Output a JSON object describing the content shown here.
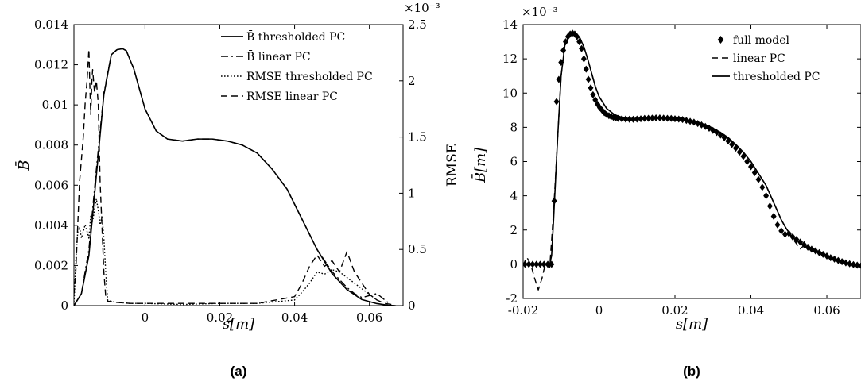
{
  "figure": {
    "caption_a": "(a)",
    "caption_b": "(b)"
  },
  "chart_data": [
    {
      "type": "line",
      "panel": "a",
      "xlabel": "s[m]",
      "ylabel": "B̄",
      "y2label": "RMSE",
      "y2_exponent": "×10⁻³",
      "xlim": [
        -0.019,
        0.069
      ],
      "ylim": [
        0,
        0.014
      ],
      "y2lim": [
        0,
        2.5
      ],
      "xticks": [
        "0",
        "0.02",
        "0.04",
        "0.06"
      ],
      "xtick_values": [
        0,
        0.02,
        0.04,
        0.06
      ],
      "yticks": [
        "0",
        "0.002",
        "0.004",
        "0.006",
        "0.008",
        "0.01",
        "0.012",
        "0.014"
      ],
      "ytick_values": [
        0,
        0.002,
        0.004,
        0.006,
        0.008,
        0.01,
        0.012,
        0.014
      ],
      "y2ticks": [
        "0",
        "0.5",
        "1",
        "1.5",
        "2",
        "2.5"
      ],
      "y2tick_values": [
        0,
        0.5,
        1,
        1.5,
        2,
        2.5
      ],
      "legend_position": "top-right",
      "series": [
        {
          "name": "B̄ thresholded PC",
          "axis": "left",
          "style": "solid",
          "x": [
            -0.019,
            -0.017,
            -0.015,
            -0.013,
            -0.011,
            -0.009,
            -0.0075,
            -0.006,
            -0.005,
            -0.003,
            0,
            0.003,
            0.006,
            0.01,
            0.014,
            0.018,
            0.022,
            0.026,
            0.03,
            0.034,
            0.038,
            0.042,
            0.046,
            0.05,
            0.054,
            0.058,
            0.062,
            0.065,
            0.067
          ],
          "y": [
            0,
            0.0006,
            0.0025,
            0.0065,
            0.0105,
            0.0125,
            0.01275,
            0.0128,
            0.0127,
            0.0118,
            0.0098,
            0.0087,
            0.0083,
            0.0082,
            0.0083,
            0.0083,
            0.0082,
            0.008,
            0.0076,
            0.0068,
            0.0058,
            0.0043,
            0.0028,
            0.0016,
            0.0008,
            0.0003,
            0.0001,
            2e-05,
            0
          ]
        },
        {
          "name": "B̄ linear PC",
          "axis": "left",
          "style": "dashdot",
          "x": [
            -0.019,
            -0.017,
            -0.015,
            -0.013,
            -0.011,
            -0.009,
            -0.0075,
            -0.006,
            -0.005,
            -0.003,
            0,
            0.003,
            0.006,
            0.01,
            0.014,
            0.018,
            0.022,
            0.026,
            0.03,
            0.034,
            0.038,
            0.042,
            0.046,
            0.05,
            0.054,
            0.056,
            0.058,
            0.06,
            0.062,
            0.064,
            0.066
          ],
          "y": [
            0,
            0.0006,
            0.0028,
            0.0068,
            0.0106,
            0.0125,
            0.01275,
            0.0128,
            0.0127,
            0.0118,
            0.0098,
            0.0087,
            0.0083,
            0.0082,
            0.0083,
            0.0083,
            0.0082,
            0.008,
            0.0076,
            0.0068,
            0.0058,
            0.0043,
            0.0028,
            0.0017,
            0.0009,
            0.0006,
            0.0004,
            0.0005,
            0.0006,
            0.0003,
            0
          ]
        },
        {
          "name": "RMSE thresholded PC",
          "axis": "right",
          "style": "dotted",
          "x": [
            -0.019,
            -0.0185,
            -0.018,
            -0.0175,
            -0.017,
            -0.016,
            -0.015,
            -0.0145,
            -0.014,
            -0.013,
            -0.0125,
            -0.012,
            -0.0115,
            -0.011,
            -0.0105,
            -0.01,
            -0.008,
            -0.004,
            0,
            0.01,
            0.02,
            0.03,
            0.04,
            0.042,
            0.044,
            0.046,
            0.048,
            0.05,
            0.052,
            0.054,
            0.056,
            0.058,
            0.06,
            0.062
          ],
          "y": [
            0,
            0.4,
            0.65,
            0.7,
            0.6,
            0.72,
            0.6,
            0.8,
            0.75,
            0.95,
            0.85,
            0.72,
            0.8,
            0.6,
            0.3,
            0.05,
            0.03,
            0.02,
            0.02,
            0.01,
            0.02,
            0.02,
            0.05,
            0.12,
            0.2,
            0.3,
            0.28,
            0.32,
            0.3,
            0.25,
            0.2,
            0.15,
            0.1,
            0.05
          ]
        },
        {
          "name": "RMSE linear PC",
          "axis": "right",
          "style": "dashed",
          "x": [
            -0.019,
            -0.0185,
            -0.018,
            -0.0175,
            -0.017,
            -0.0165,
            -0.016,
            -0.0155,
            -0.015,
            -0.0147,
            -0.0145,
            -0.0142,
            -0.014,
            -0.0135,
            -0.013,
            -0.0125,
            -0.012,
            -0.0115,
            -0.011,
            -0.0105,
            -0.01,
            -0.008,
            -0.004,
            0,
            0.01,
            0.02,
            0.03,
            0.04,
            0.042,
            0.044,
            0.046,
            0.048,
            0.05,
            0.052,
            0.054,
            0.056,
            0.058,
            0.06,
            0.062,
            0.064,
            0.066
          ],
          "y": [
            0.1,
            0.3,
            0.7,
            1.1,
            1.3,
            1.5,
            1.8,
            2.0,
            2.28,
            1.9,
            1.7,
            2.0,
            2.1,
            1.9,
            2.0,
            1.8,
            1.1,
            0.7,
            0.3,
            0.08,
            0.04,
            0.03,
            0.02,
            0.02,
            0.02,
            0.02,
            0.02,
            0.08,
            0.2,
            0.35,
            0.45,
            0.35,
            0.4,
            0.3,
            0.48,
            0.3,
            0.2,
            0.1,
            0.05,
            0.02,
            0.01
          ]
        }
      ]
    },
    {
      "type": "line",
      "panel": "b",
      "xlabel": "s[m]",
      "ylabel": "B̄[m]",
      "y_exponent": "×10⁻³",
      "xlim": [
        -0.02,
        0.069
      ],
      "ylim": [
        -2,
        14
      ],
      "xticks": [
        "-0.02",
        "0",
        "0.02",
        "0.04",
        "0.06"
      ],
      "xtick_values": [
        -0.02,
        0,
        0.02,
        0.04,
        0.06
      ],
      "yticks": [
        "-2",
        "0",
        "2",
        "4",
        "6",
        "8",
        "10",
        "12",
        "14"
      ],
      "ytick_values": [
        -2,
        0,
        2,
        4,
        6,
        8,
        10,
        12,
        14
      ],
      "legend_position": "top-right",
      "series": [
        {
          "name": "full model",
          "style": "diamond-markers",
          "x": [
            -0.0195,
            -0.0185,
            -0.0175,
            -0.0165,
            -0.0155,
            -0.0145,
            -0.0135,
            -0.0125,
            -0.0118,
            -0.0112,
            -0.0106,
            -0.01,
            -0.0094,
            -0.0088,
            -0.0082,
            -0.0076,
            -0.007,
            -0.0064,
            -0.0058,
            -0.0052,
            -0.0046,
            -0.004,
            -0.0034,
            -0.0028,
            -0.0022,
            -0.0016,
            -0.001,
            -0.0004,
            0.0002,
            0.0008,
            0.0014,
            0.002,
            0.0026,
            0.0032,
            0.0038,
            0.0044,
            0.005,
            0.006,
            0.007,
            0.008,
            0.009,
            0.01,
            0.011,
            0.012,
            0.013,
            0.014,
            0.015,
            0.016,
            0.017,
            0.018,
            0.019,
            0.02,
            0.021,
            0.022,
            0.023,
            0.024,
            0.025,
            0.026,
            0.027,
            0.028,
            0.029,
            0.03,
            0.031,
            0.032,
            0.033,
            0.034,
            0.035,
            0.036,
            0.037,
            0.038,
            0.039,
            0.04,
            0.041,
            0.042,
            0.043,
            0.044,
            0.045,
            0.046,
            0.047,
            0.048,
            0.049,
            0.05,
            0.051,
            0.052,
            0.053,
            0.054,
            0.055,
            0.056,
            0.057,
            0.058,
            0.059,
            0.06,
            0.061,
            0.062,
            0.063,
            0.064,
            0.065,
            0.066,
            0.067,
            0.068,
            0.069
          ],
          "y": [
            0,
            0,
            0,
            0,
            0,
            0,
            0,
            0,
            3.7,
            9.5,
            10.8,
            11.8,
            12.5,
            13.0,
            13.3,
            13.45,
            13.5,
            13.45,
            13.3,
            13.0,
            12.6,
            12.0,
            11.4,
            10.8,
            10.3,
            9.9,
            9.6,
            9.35,
            9.15,
            9.0,
            8.85,
            8.75,
            8.68,
            8.62,
            8.58,
            8.55,
            8.52,
            8.5,
            8.48,
            8.47,
            8.47,
            8.48,
            8.5,
            8.52,
            8.53,
            8.54,
            8.55,
            8.55,
            8.54,
            8.53,
            8.52,
            8.5,
            8.48,
            8.45,
            8.4,
            8.35,
            8.3,
            8.22,
            8.14,
            8.05,
            7.95,
            7.82,
            7.7,
            7.55,
            7.4,
            7.2,
            7.0,
            6.78,
            6.55,
            6.3,
            6.0,
            5.7,
            5.35,
            4.95,
            4.5,
            4.0,
            3.4,
            2.8,
            2.3,
            1.95,
            1.75,
            1.8,
            1.6,
            1.45,
            1.3,
            1.15,
            1.0,
            0.88,
            0.78,
            0.68,
            0.58,
            0.48,
            0.38,
            0.3,
            0.22,
            0.15,
            0.08,
            0.03,
            -0.02,
            -0.05,
            -0.08
          ]
        },
        {
          "name": "linear PC",
          "style": "dashed",
          "x": [
            -0.02,
            -0.0195,
            -0.019,
            -0.018,
            -0.017,
            -0.016,
            -0.015,
            -0.0145,
            -0.014,
            -0.013,
            -0.012,
            -0.011,
            -0.01,
            -0.009,
            -0.008,
            -0.007,
            -0.006,
            -0.005,
            -0.004,
            -0.003,
            -0.002,
            -0.001,
            0,
            0.002,
            0.004,
            0.006,
            0.008,
            0.01,
            0.012,
            0.014,
            0.016,
            0.018,
            0.02,
            0.022,
            0.024,
            0.026,
            0.028,
            0.03,
            0.032,
            0.034,
            0.036,
            0.038,
            0.04,
            0.042,
            0.044,
            0.046,
            0.048,
            0.049,
            0.05,
            0.051,
            0.052,
            0.053,
            0.054,
            0.056,
            0.058,
            0.06,
            0.062,
            0.064,
            0.066,
            0.068,
            0.069
          ],
          "y": [
            -0.1,
            0.2,
            0.4,
            0.0,
            -0.8,
            -1.5,
            -0.8,
            -0.3,
            0.0,
            -0.2,
            3.0,
            7.0,
            11.0,
            12.8,
            13.3,
            13.5,
            13.45,
            13.2,
            12.7,
            12.0,
            11.2,
            10.4,
            9.8,
            9.1,
            8.75,
            8.58,
            8.5,
            8.47,
            8.5,
            8.53,
            8.55,
            8.54,
            8.51,
            8.47,
            8.4,
            8.3,
            8.15,
            7.95,
            7.7,
            7.4,
            7.0,
            6.55,
            6.0,
            5.3,
            4.6,
            3.6,
            2.6,
            2.2,
            1.8,
            1.5,
            1.2,
            0.9,
            1.1,
            0.95,
            0.7,
            0.5,
            0.32,
            0.18,
            0.05,
            -0.05,
            -0.08
          ]
        },
        {
          "name": "thresholded PC",
          "style": "solid",
          "x": [
            -0.02,
            -0.013,
            -0.0125,
            -0.012,
            -0.011,
            -0.01,
            -0.009,
            -0.008,
            -0.007,
            -0.006,
            -0.005,
            -0.004,
            -0.003,
            -0.002,
            -0.001,
            0,
            0.002,
            0.004,
            0.006,
            0.008,
            0.01,
            0.012,
            0.014,
            0.016,
            0.018,
            0.02,
            0.022,
            0.024,
            0.026,
            0.028,
            0.03,
            0.032,
            0.034,
            0.036,
            0.038,
            0.04,
            0.042,
            0.044,
            0.046,
            0.048,
            0.049,
            0.05,
            0.051,
            0.052,
            0.054,
            0.056,
            0.058,
            0.06,
            0.062,
            0.064,
            0.066,
            0.068,
            0.069
          ],
          "y": [
            0,
            0,
            0.5,
            2.5,
            7.0,
            11.0,
            12.8,
            13.3,
            13.5,
            13.45,
            13.2,
            12.7,
            12.0,
            11.2,
            10.4,
            9.8,
            9.1,
            8.75,
            8.58,
            8.5,
            8.47,
            8.5,
            8.53,
            8.55,
            8.54,
            8.51,
            8.47,
            8.4,
            8.3,
            8.15,
            7.95,
            7.7,
            7.4,
            7.0,
            6.55,
            6.0,
            5.3,
            4.6,
            3.6,
            2.6,
            2.2,
            1.85,
            1.6,
            1.4,
            1.1,
            0.85,
            0.63,
            0.45,
            0.3,
            0.17,
            0.05,
            -0.05,
            -0.08
          ]
        }
      ]
    }
  ]
}
